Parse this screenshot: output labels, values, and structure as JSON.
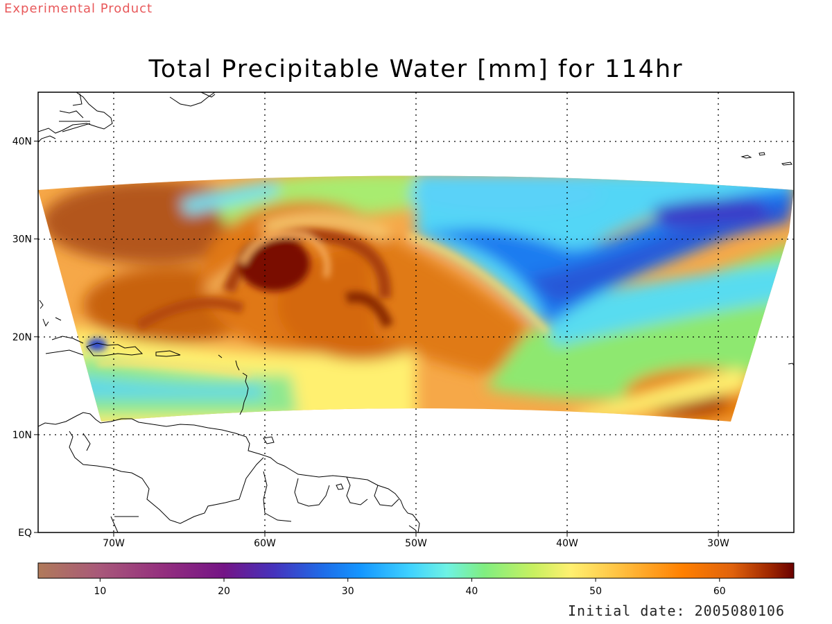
{
  "watermark": "Experimental Product",
  "title": "Total Precipitable Water [mm] for 114hr",
  "initial_date_text": "Initial date: 2005080106",
  "map": {
    "lon_range": [
      -75,
      -25
    ],
    "lat_range": [
      0,
      45
    ],
    "lon_ticks": [
      {
        "value": -70,
        "label": "70W"
      },
      {
        "value": -60,
        "label": "60W"
      },
      {
        "value": -50,
        "label": "50W"
      },
      {
        "value": -40,
        "label": "40W"
      },
      {
        "value": -30,
        "label": "30W"
      }
    ],
    "lat_ticks": [
      {
        "value": 0,
        "label": "EQ"
      },
      {
        "value": 10,
        "label": "10N"
      },
      {
        "value": 20,
        "label": "20N"
      },
      {
        "value": 30,
        "label": "30N"
      },
      {
        "value": 40,
        "label": "40N"
      }
    ],
    "grid": "dotted",
    "field": "total precipitable water",
    "features": [
      {
        "name": "cyclone-core",
        "lon": -59,
        "lat": 27.5,
        "value_mm": 66
      },
      {
        "name": "dry-slot",
        "lon": -37,
        "lat": 28,
        "value_mm": 26
      },
      {
        "name": "moist-tongue-southeast",
        "lon": -31,
        "lat": 13.5,
        "value_mm": 62
      }
    ]
  },
  "colorbar": {
    "range": [
      5,
      66
    ],
    "ticks": [
      10,
      20,
      30,
      40,
      50,
      60
    ],
    "stops": [
      {
        "value": 5,
        "color": "#b07a5a"
      },
      {
        "value": 10,
        "color": "#a8587a"
      },
      {
        "value": 15,
        "color": "#942f7e"
      },
      {
        "value": 20,
        "color": "#741486"
      },
      {
        "value": 24,
        "color": "#4632bc"
      },
      {
        "value": 28,
        "color": "#1e6ce8"
      },
      {
        "value": 31,
        "color": "#1496ff"
      },
      {
        "value": 35,
        "color": "#3fd2ff"
      },
      {
        "value": 38,
        "color": "#6ef2e4"
      },
      {
        "value": 41,
        "color": "#80ee80"
      },
      {
        "value": 45,
        "color": "#c8f060"
      },
      {
        "value": 48,
        "color": "#fff070"
      },
      {
        "value": 52,
        "color": "#ffc040"
      },
      {
        "value": 57,
        "color": "#ff8000"
      },
      {
        "value": 61,
        "color": "#e0620c"
      },
      {
        "value": 64,
        "color": "#a02800"
      },
      {
        "value": 66,
        "color": "#6a0000"
      }
    ]
  }
}
